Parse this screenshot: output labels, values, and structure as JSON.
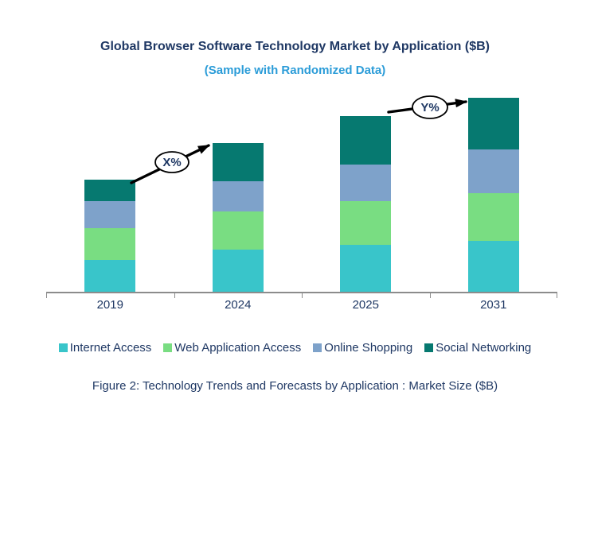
{
  "title": "Global Browser Software Technology Market by Application ($B)",
  "subtitle": "(Sample with Randomized Data)",
  "caption": "Figure 2: Technology Trends and Forecasts by Application : Market Size ($B)",
  "annotations": {
    "x": {
      "label": "X%"
    },
    "y": {
      "label": "Y%"
    }
  },
  "colors": {
    "title_navy": "#1F3864",
    "subtitle_blue": "#2B9CD8",
    "axis_gray": "#8C8C8C",
    "arrow_black": "#000000"
  },
  "chart_data": {
    "type": "bar",
    "stacked": true,
    "title": "Global Browser Software Technology Market by Application ($B)",
    "xlabel": "",
    "ylabel": "Market Size ($B)",
    "categories": [
      "2019",
      "2024",
      "2025",
      "2031"
    ],
    "series": [
      {
        "name": "Internet Access",
        "color": "#39C5CA",
        "values": [
          40,
          53,
          59,
          64
        ]
      },
      {
        "name": "Web Application Access",
        "color": "#79DD82",
        "values": [
          40,
          48,
          55,
          60
        ]
      },
      {
        "name": "Online Shopping",
        "color": "#7EA2CA",
        "values": [
          34,
          38,
          46,
          55
        ]
      },
      {
        "name": "Social Networking",
        "color": "#067970",
        "values": [
          27,
          48,
          61,
          65
        ]
      }
    ],
    "totals": [
      141,
      187,
      221,
      244
    ],
    "ylim": [
      0,
      257
    ],
    "grid": false,
    "y_axis_shown": false,
    "legend_position": "bottom",
    "annotations": [
      {
        "label": "X%",
        "from_category": "2019",
        "to_category": "2024",
        "meaning": "growth 2019-2024"
      },
      {
        "label": "Y%",
        "from_category": "2025",
        "to_category": "2031",
        "meaning": "growth 2025-2031"
      }
    ]
  }
}
